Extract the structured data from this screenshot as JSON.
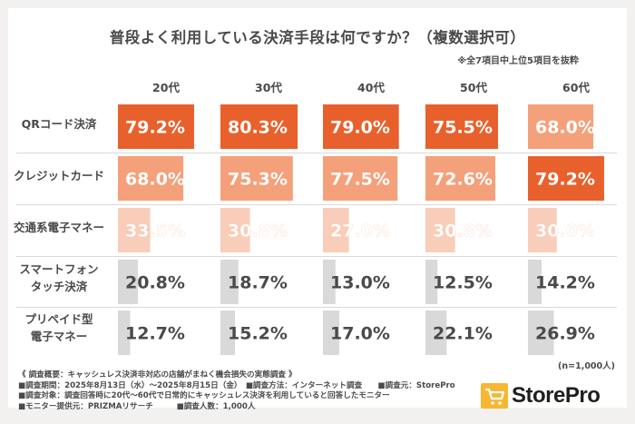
{
  "title": "普段よく利用している決済手段は何ですか？（複数選択可）",
  "note": "※全7項目中上位5項目を抜粋",
  "sample_size": "(n=1,000人)",
  "colors": {
    "top": "#e8612c",
    "second": "#f4a07a",
    "third": "#f8cdb9",
    "grey": "#d9d9d9",
    "value_white": "#ffffff",
    "value_dark": "#4a4a4a"
  },
  "chart_data": {
    "type": "bar",
    "title": "普段よく利用している決済手段は何ですか？（複数選択可）",
    "categories": [
      "20代",
      "30代",
      "40代",
      "50代",
      "60代"
    ],
    "rows": [
      {
        "label": [
          "QRコード決済"
        ],
        "values": [
          79.2,
          80.3,
          79.0,
          75.5,
          68.0
        ],
        "value_labels": [
          "79.2%",
          "80.3%",
          "79.0%",
          "75.5%",
          "68.0%"
        ],
        "rank": [
          1,
          1,
          1,
          1,
          2
        ]
      },
      {
        "label": [
          "クレジットカード"
        ],
        "values": [
          68.0,
          75.3,
          77.5,
          72.6,
          79.2
        ],
        "value_labels": [
          "68.0%",
          "75.3%",
          "77.5%",
          "72.6%",
          "79.2%"
        ],
        "rank": [
          2,
          2,
          2,
          2,
          1
        ]
      },
      {
        "label": [
          "交通系電子マネー"
        ],
        "values": [
          33.5,
          30.8,
          27.0,
          30.8,
          30.0
        ],
        "value_labels": [
          "33.5%",
          "30.8%",
          "27.0%",
          "30.8%",
          "30.0%"
        ],
        "rank": [
          3,
          3,
          3,
          3,
          3
        ]
      },
      {
        "label": [
          "スマートフォン",
          "タッチ決済"
        ],
        "values": [
          20.8,
          18.7,
          13.0,
          12.5,
          14.2
        ],
        "value_labels": [
          "20.8%",
          "18.7%",
          "13.0%",
          "12.5%",
          "14.2%"
        ],
        "rank": [
          4,
          4,
          5,
          5,
          5
        ]
      },
      {
        "label": [
          "プリペイド型",
          "電子マネー"
        ],
        "values": [
          12.7,
          15.2,
          17.0,
          22.1,
          26.9
        ],
        "value_labels": [
          "12.7%",
          "15.2%",
          "17.0%",
          "22.1%",
          "26.9%"
        ],
        "rank": [
          5,
          5,
          4,
          4,
          4
        ]
      }
    ],
    "ylim": [
      0,
      100
    ]
  },
  "footer": {
    "line1": "《 調査概要：キャッシュレス決済非対応の店舗がまねく機会損失の実態調査 》",
    "line2": "■調査期間：2025年8月13日（水）～2025年8月15日（金）　■調査方法：インターネット調査　　■調査元：StorePro",
    "line3": "■調査対象：調査回答時に20代～60代で日常的にキャッシュレス決済を利用していると回答したモニター",
    "line4": "■モニター提供元：PRIZMAリサーチ　　　■調査人数：1,000人"
  },
  "logo": {
    "text": "StorePro",
    "icon": "shopping-cart-icon",
    "color": "#f7b733"
  }
}
